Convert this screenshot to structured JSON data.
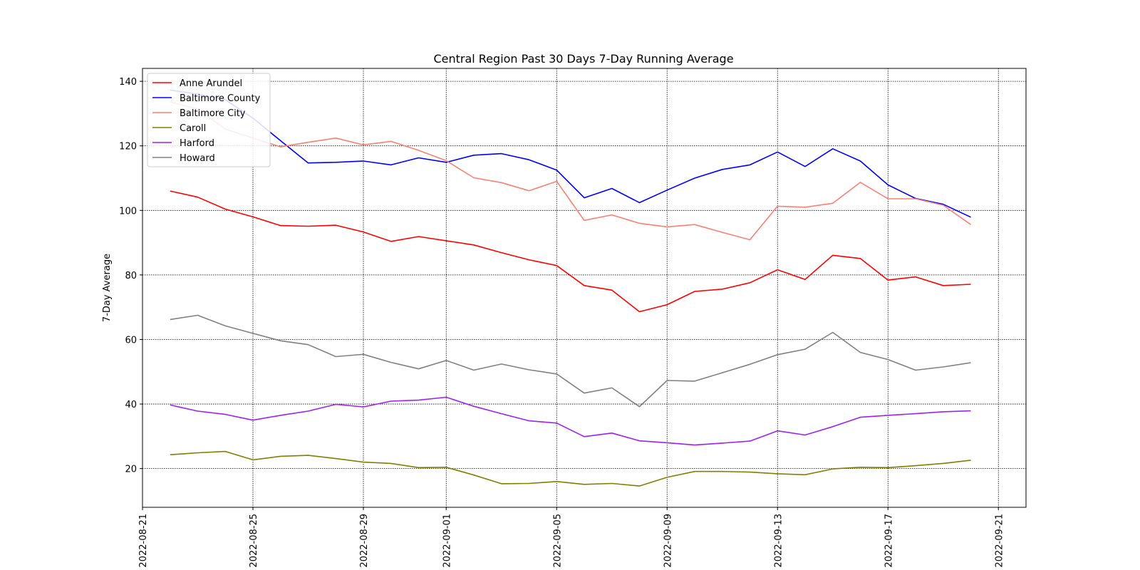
{
  "chart_data": {
    "type": "line",
    "title": "Central Region Past 30 Days 7-Day Running Average",
    "xlabel": "",
    "ylabel": "7-Day Average",
    "x_ticks": [
      "2022-08-21",
      "2022-08-25",
      "2022-08-29",
      "2022-09-01",
      "2022-09-05",
      "2022-09-09",
      "2022-09-13",
      "2022-09-17",
      "2022-09-21"
    ],
    "y_ticks": [
      20,
      40,
      60,
      80,
      100,
      120,
      140
    ],
    "xlim": [
      "2022-08-21",
      "2022-09-22"
    ],
    "ylim": [
      8,
      144
    ],
    "grid": true,
    "legend_position": "top-left",
    "x": [
      "2022-08-22",
      "2022-08-23",
      "2022-08-24",
      "2022-08-25",
      "2022-08-26",
      "2022-08-27",
      "2022-08-28",
      "2022-08-29",
      "2022-08-30",
      "2022-08-31",
      "2022-09-01",
      "2022-09-02",
      "2022-09-03",
      "2022-09-04",
      "2022-09-05",
      "2022-09-06",
      "2022-09-07",
      "2022-09-08",
      "2022-09-09",
      "2022-09-10",
      "2022-09-11",
      "2022-09-12",
      "2022-09-13",
      "2022-09-14",
      "2022-09-15",
      "2022-09-16",
      "2022-09-17",
      "2022-09-18",
      "2022-09-19",
      "2022-09-20"
    ],
    "series": [
      {
        "name": "Anne Arundel",
        "color": "#ff0000",
        "values": [
          106,
          104.1,
          100.4,
          98,
          95.3,
          95.1,
          95.4,
          93.3,
          90.4,
          91.9,
          90.6,
          89.3,
          86.9,
          84.7,
          82.9,
          76.7,
          75.3,
          68.6,
          70.8,
          74.9,
          75.6,
          77.6,
          81.6,
          78.6,
          86.1,
          85.1,
          78.4,
          79.4,
          76.7,
          77.1
        ]
      },
      {
        "name": "Baltimore County",
        "color": "#0000ff",
        "values": [
          137.3,
          136,
          134.3,
          128.6,
          121.6,
          114.7,
          114.9,
          115.3,
          114.1,
          116.3,
          114.9,
          117.1,
          117.6,
          115.7,
          112.5,
          103.9,
          106.8,
          102.4,
          106.3,
          110,
          112.7,
          114.1,
          118.1,
          113.6,
          119.1,
          115.3,
          107.9,
          103.7,
          101.9,
          97.9
        ]
      },
      {
        "name": "Baltimore City",
        "color": "#fa8072",
        "values": [
          133.6,
          131.4,
          125.2,
          122.4,
          119.7,
          121.1,
          122.4,
          120.3,
          121.4,
          118.6,
          115.4,
          110.1,
          108.6,
          106.1,
          109,
          96.9,
          98.6,
          96,
          94.9,
          95.6,
          93.2,
          90.9,
          101.3,
          101,
          102.2,
          108.7,
          103.6,
          103.6,
          101.6,
          95.6
        ]
      },
      {
        "name": "Caroll",
        "color": "#808000",
        "values": [
          24.3,
          24.9,
          25.3,
          22.7,
          23.8,
          24.1,
          23.1,
          22,
          21.6,
          20.3,
          20.4,
          18,
          15.3,
          15.4,
          16,
          15.1,
          15.4,
          14.6,
          17.3,
          19.1,
          19.1,
          18.9,
          18.4,
          18.1,
          19.9,
          20.4,
          20.3,
          20.9,
          21.6,
          22.6
        ]
      },
      {
        "name": "Harford",
        "color": "#a020f0",
        "values": [
          39.7,
          37.8,
          36.8,
          35,
          36.5,
          37.8,
          39.9,
          39.1,
          40.9,
          41.2,
          42.1,
          39.3,
          37,
          34.8,
          34.1,
          29.9,
          31,
          28.6,
          28,
          27.3,
          27.9,
          28.5,
          31.7,
          30.4,
          33,
          35.9,
          36.5,
          37,
          37.6,
          37.9
        ]
      },
      {
        "name": "Howard",
        "color": "#808080",
        "values": [
          66.2,
          67.5,
          64.2,
          61.9,
          59.6,
          58.4,
          54.7,
          55.4,
          52.9,
          50.9,
          53.5,
          50.5,
          52.4,
          50.6,
          49.3,
          43.4,
          45,
          39.2,
          47.3,
          47.1,
          49.7,
          52.3,
          55.3,
          57,
          62.2,
          56,
          53.8,
          50.5,
          51.5,
          52.8
        ]
      }
    ]
  }
}
